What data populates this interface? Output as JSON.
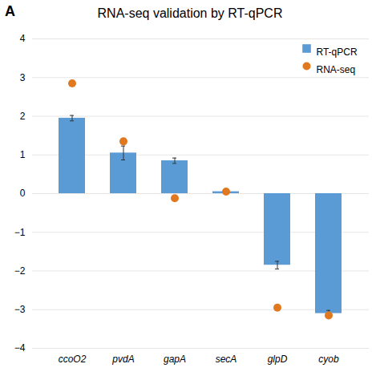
{
  "chart_data": {
    "type": "bar",
    "title": "RNA-seq validation by RT-qPCR",
    "annotations": [
      "A"
    ],
    "categories": [
      "ccoO2",
      "pvdA",
      "gapA",
      "secA",
      "glpD",
      "cyob"
    ],
    "series": [
      {
        "name": "RT-qPCR",
        "type": "bar",
        "color": "#5b9bd5",
        "values": [
          1.95,
          1.05,
          0.85,
          0.05,
          -1.85,
          -3.1
        ],
        "errors": [
          0.07,
          0.18,
          0.07,
          0.03,
          0.1,
          0.08
        ]
      },
      {
        "name": "RNA-seq",
        "type": "scatter",
        "color": "#e07820",
        "values": [
          2.85,
          1.35,
          -0.12,
          0.05,
          -2.95,
          -3.15
        ]
      }
    ],
    "ylim": [
      -4,
      4
    ],
    "yticks": [
      -4,
      -3,
      -2,
      -1,
      0,
      1,
      2,
      3,
      4
    ],
    "grid": true,
    "legend": "upper right"
  }
}
